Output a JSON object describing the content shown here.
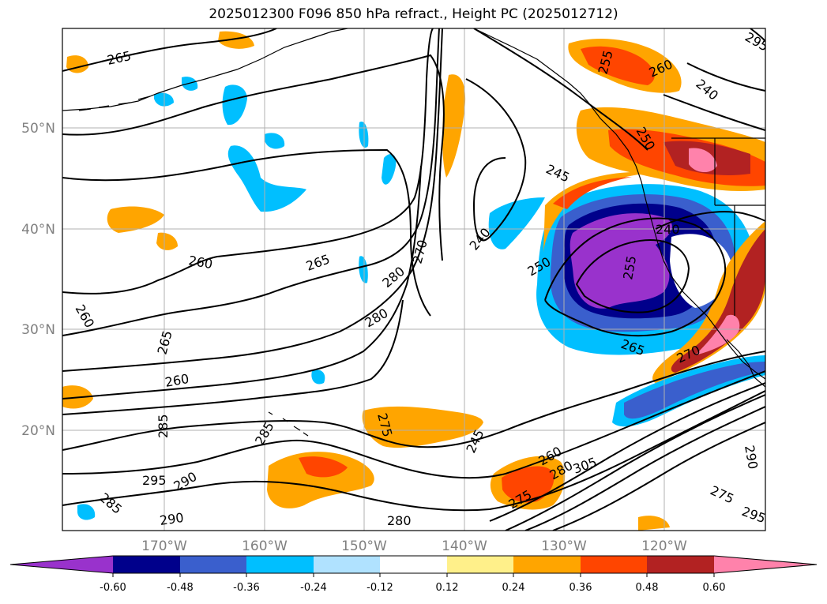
{
  "title": "2025012300 F096 850 hPa refract., Height PC (2025012712)",
  "lat_labels": [
    "50°N",
    "40°N",
    "30°N",
    "20°N"
  ],
  "lon_labels": [
    "170°W",
    "160°W",
    "150°W",
    "140°W",
    "130°W",
    "120°W"
  ],
  "colorbar": {
    "ticks": [
      "-0.60",
      "-0.48",
      "-0.36",
      "-0.24",
      "-0.12",
      "0.12",
      "0.24",
      "0.36",
      "0.48",
      "0.60"
    ],
    "colors": [
      "#9932cc",
      "#00008b",
      "#3a5fcd",
      "#00bfff",
      "#b0e2ff",
      "#ffffff",
      "#fff08a",
      "#ffa500",
      "#ff4500",
      "#b22222",
      "#ff82ab"
    ]
  },
  "contour_labels": [
    "265",
    "260",
    "265",
    "260",
    "265",
    "260",
    "285",
    "295",
    "290",
    "285",
    "290",
    "280",
    "280",
    "270",
    "280",
    "275",
    "285",
    "240",
    "245",
    "250",
    "255",
    "260",
    "250",
    "240",
    "255",
    "265",
    "270",
    "240",
    "245",
    "275",
    "295",
    "305",
    "280",
    "290",
    "295",
    "275",
    "260"
  ]
}
